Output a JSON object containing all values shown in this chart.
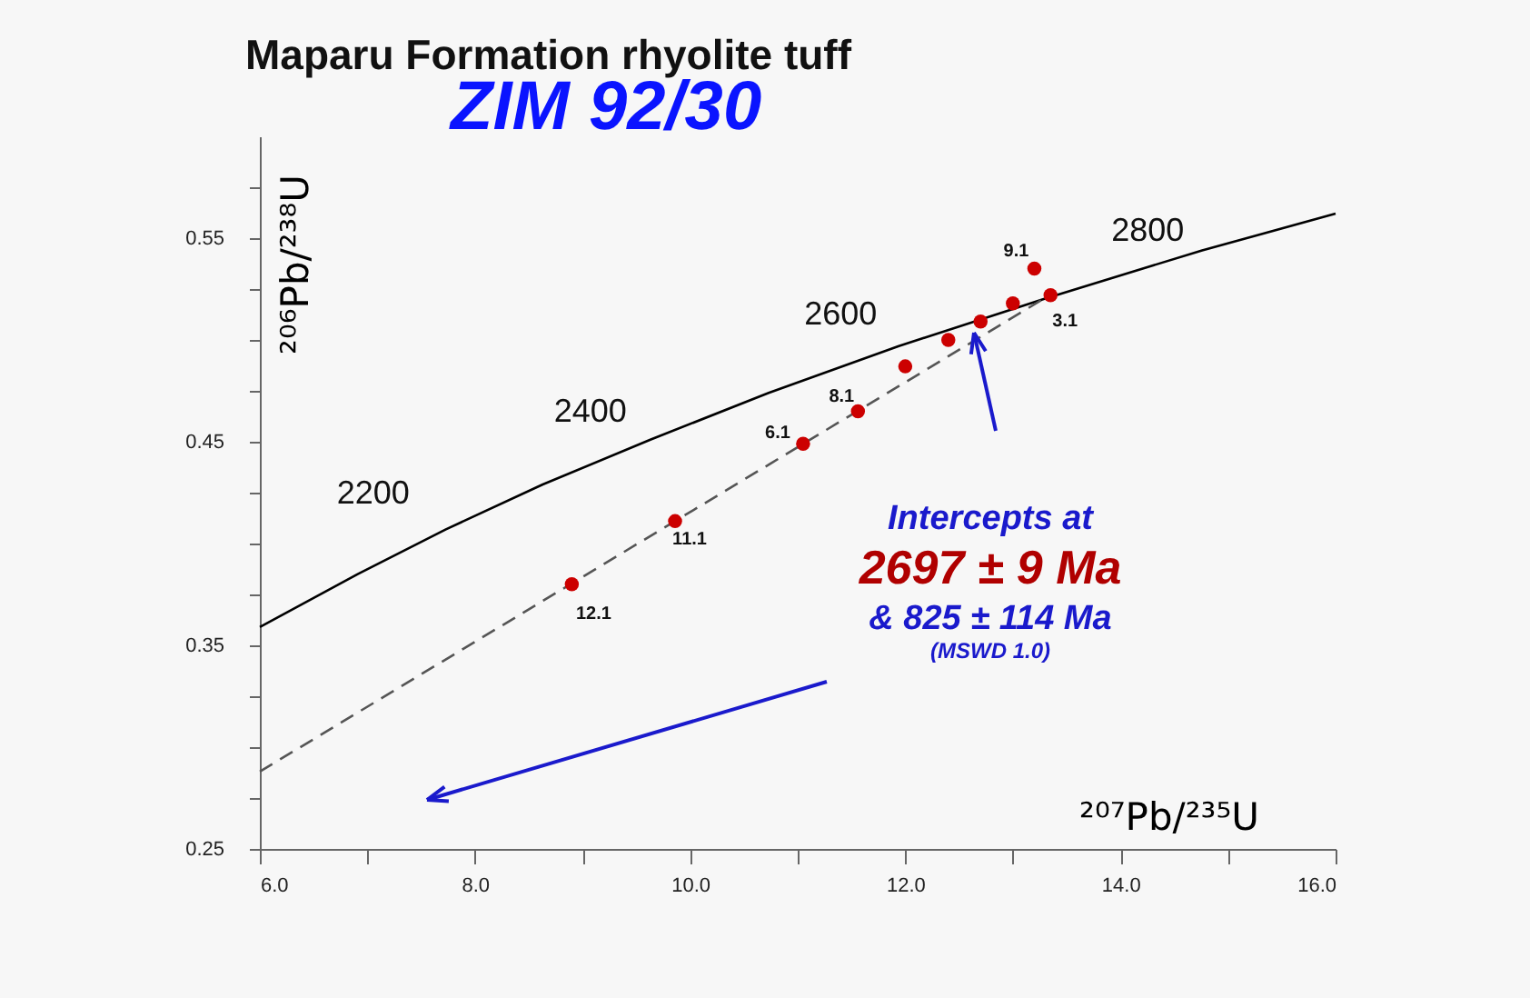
{
  "chart_data": {
    "type": "line",
    "title": "Maparu Formation rhyolite tuff",
    "subtitle": "ZIM 92/30",
    "xlabel": "²⁰⁷Pb/²³⁵U",
    "ylabel": "²⁰⁶Pb/²³⁸U",
    "xlim": [
      6,
      16
    ],
    "ylim": [
      0.25,
      0.6
    ],
    "xticks": [
      {
        "value": 6,
        "label": "6.0"
      },
      {
        "value": 7,
        "label": null
      },
      {
        "value": 8,
        "label": "8.0"
      },
      {
        "value": 9,
        "label": null
      },
      {
        "value": 10,
        "label": "10.0"
      },
      {
        "value": 11,
        "label": null
      },
      {
        "value": 12,
        "label": "12.0"
      },
      {
        "value": 13,
        "label": null
      },
      {
        "value": 14,
        "label": "14.0"
      },
      {
        "value": 15,
        "label": null
      },
      {
        "value": 16,
        "label": "16.0"
      }
    ],
    "yticks": [
      {
        "value": 0.25,
        "label": "0.25"
      },
      {
        "value": 0.275,
        "label": null
      },
      {
        "value": 0.3,
        "label": null
      },
      {
        "value": 0.325,
        "label": null
      },
      {
        "value": 0.35,
        "label": "0.35"
      },
      {
        "value": 0.375,
        "label": null
      },
      {
        "value": 0.4,
        "label": null
      },
      {
        "value": 0.425,
        "label": null
      },
      {
        "value": 0.45,
        "label": "0.45"
      },
      {
        "value": 0.475,
        "label": null
      },
      {
        "value": 0.5,
        "label": null
      },
      {
        "value": 0.525,
        "label": null
      },
      {
        "value": 0.55,
        "label": "0.55"
      },
      {
        "value": 0.575,
        "label": null
      }
    ],
    "series": [
      {
        "color": "#000000",
        "line_style": "solid",
        "x": [
          6.0,
          6.91,
          7.73,
          8.63,
          9.63,
          10.73,
          11.94,
          13.28,
          14.76,
          16.0
        ],
        "values": [
          0.359,
          0.385,
          0.407,
          0.429,
          0.451,
          0.474,
          0.497,
          0.52,
          0.544,
          0.562
        ]
      },
      {
        "color": "#555555",
        "line_style": "dashed",
        "x": [
          6.0,
          13.28
        ],
        "values": [
          0.288,
          0.52
        ]
      },
      {
        "type": "scatter",
        "color": "#cc0000",
        "marker": "circle",
        "x": [
          8.9,
          9.86,
          11.05,
          11.56,
          12.0,
          12.4,
          12.7,
          13.0,
          13.2,
          13.35
        ],
        "values": [
          0.38,
          0.411,
          0.449,
          0.465,
          0.487,
          0.5,
          0.509,
          0.518,
          0.535,
          0.522
        ]
      }
    ],
    "annotations": [
      {
        "text": "2200",
        "x": 7.73,
        "y": 0.407
      },
      {
        "text": "2400",
        "x": 9.63,
        "y": 0.451
      },
      {
        "text": "2600",
        "x": 11.94,
        "y": 0.497
      },
      {
        "text": "2800",
        "x": 14.76,
        "y": 0.544
      },
      {
        "text": "9.1",
        "x": 13.2,
        "y": 0.535
      },
      {
        "text": "3.1",
        "x": 13.35,
        "y": 0.522
      },
      {
        "text": "8.1",
        "x": 11.56,
        "y": 0.465
      },
      {
        "text": "6.1",
        "x": 11.05,
        "y": 0.449
      },
      {
        "text": "11.1",
        "x": 9.86,
        "y": 0.411
      },
      {
        "text": "12.1",
        "x": 8.9,
        "y": 0.38
      },
      "Intercepts at",
      "2697 ± 9 Ma",
      "& 825 ± 114 Ma",
      "(MSWD 1.0)"
    ],
    "grid": false
  }
}
